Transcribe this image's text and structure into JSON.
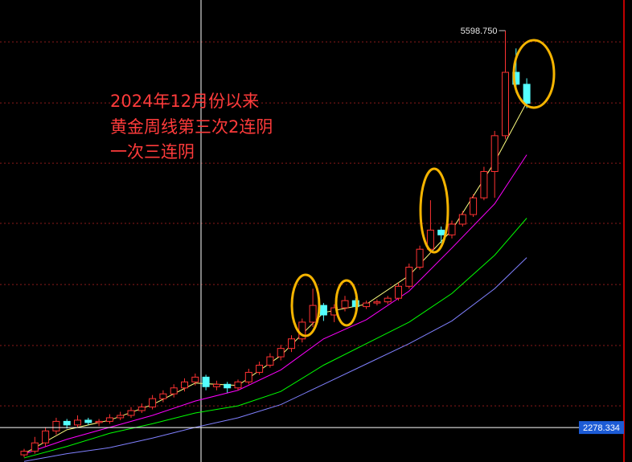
{
  "chart_data": {
    "type": "candlestick",
    "annotation": [
      "2024年12月份以来",
      "黄金周线第三次2连阴",
      "一次三连阴"
    ],
    "open": [
      2050,
      2080,
      2150,
      2250,
      2330,
      2300,
      2340,
      2320,
      2330,
      2360,
      2380,
      2420,
      2450,
      2520,
      2560,
      2610,
      2660,
      2700,
      2620,
      2640,
      2610,
      2660,
      2740,
      2800,
      2870,
      2940,
      3020,
      3160,
      3300,
      3220,
      3280,
      3340,
      3290,
      3320,
      3330,
      3360,
      3460,
      3620,
      3770,
      3930,
      3890,
      3980,
      4060,
      4200,
      4420,
      4720,
      5250,
      5150
    ],
    "high": [
      2100,
      2200,
      2280,
      2360,
      2350,
      2380,
      2360,
      2350,
      2390,
      2410,
      2450,
      2480,
      2550,
      2590,
      2640,
      2690,
      2730,
      2720,
      2670,
      2660,
      2680,
      2770,
      2830,
      2900,
      2970,
      3050,
      3190,
      3440,
      3320,
      3310,
      3380,
      3360,
      3340,
      3350,
      3380,
      3490,
      3650,
      3800,
      4180,
      3960,
      4010,
      4090,
      4230,
      4460,
      4760,
      5598.75,
      5450,
      5200
    ],
    "low": [
      2030,
      2060,
      2120,
      2220,
      2270,
      2280,
      2300,
      2290,
      2310,
      2340,
      2360,
      2400,
      2430,
      2490,
      2530,
      2580,
      2630,
      2590,
      2590,
      2570,
      2590,
      2640,
      2720,
      2780,
      2840,
      2910,
      2990,
      3120,
      3170,
      3160,
      3250,
      3260,
      3270,
      3300,
      3310,
      3340,
      3440,
      3600,
      3740,
      3820,
      3860,
      3960,
      4040,
      4180,
      4200,
      4690,
      5080,
      4950
    ],
    "close": [
      2080,
      2150,
      2250,
      2330,
      2300,
      2340,
      2320,
      2330,
      2360,
      2380,
      2420,
      2450,
      2520,
      2560,
      2610,
      2660,
      2700,
      2620,
      2640,
      2610,
      2660,
      2740,
      2800,
      2870,
      2940,
      3020,
      3160,
      3300,
      3220,
      3280,
      3340,
      3290,
      3320,
      3330,
      3360,
      3460,
      3620,
      3770,
      3930,
      3890,
      3980,
      4060,
      4200,
      4420,
      4720,
      5250,
      5150,
      4990
    ],
    "up_color": "#ff3232",
    "down_color": "#54ffff",
    "moving_averages": [
      {
        "color": "#ffff80",
        "x": [
          0,
          4,
          8,
          12,
          16,
          20,
          24,
          28,
          32,
          36,
          40,
          44,
          47
        ],
        "values": [
          2060,
          2260,
          2340,
          2470,
          2650,
          2630,
          2880,
          3240,
          3310,
          3550,
          3930,
          4500,
          5000
        ]
      },
      {
        "color": "#ff00ff",
        "x": [
          0,
          4,
          8,
          12,
          16,
          20,
          24,
          28,
          32,
          36,
          40,
          44,
          47
        ],
        "values": [
          2057,
          2180,
          2280,
          2380,
          2500,
          2590,
          2760,
          3020,
          3180,
          3420,
          3780,
          4150,
          4560
        ]
      },
      {
        "color": "#00ff00",
        "x": [
          0,
          4,
          8,
          12,
          16,
          20,
          24,
          28,
          32,
          36,
          40,
          44,
          47
        ],
        "values": [
          2024,
          2120,
          2230,
          2310,
          2400,
          2460,
          2580,
          2800,
          2980,
          3160,
          3400,
          3720,
          4030
        ]
      },
      {
        "color": "#8080ff",
        "x": [
          0,
          4,
          8,
          12,
          16,
          20,
          24,
          28,
          32,
          36,
          40,
          44,
          47
        ],
        "values": [
          1995,
          2060,
          2110,
          2190,
          2280,
          2360,
          2470,
          2640,
          2810,
          2980,
          3170,
          3440,
          3700
        ]
      }
    ],
    "max_marker": {
      "value": 5598.75,
      "label": "5598.750"
    },
    "crosshair": {
      "value": 2278.334,
      "label": "2278.334"
    },
    "ylim": [
      1990,
      5855
    ],
    "ygrid": [
      5505,
      4994,
      4490,
      3986,
      3475,
      2965,
      2460
    ]
  }
}
